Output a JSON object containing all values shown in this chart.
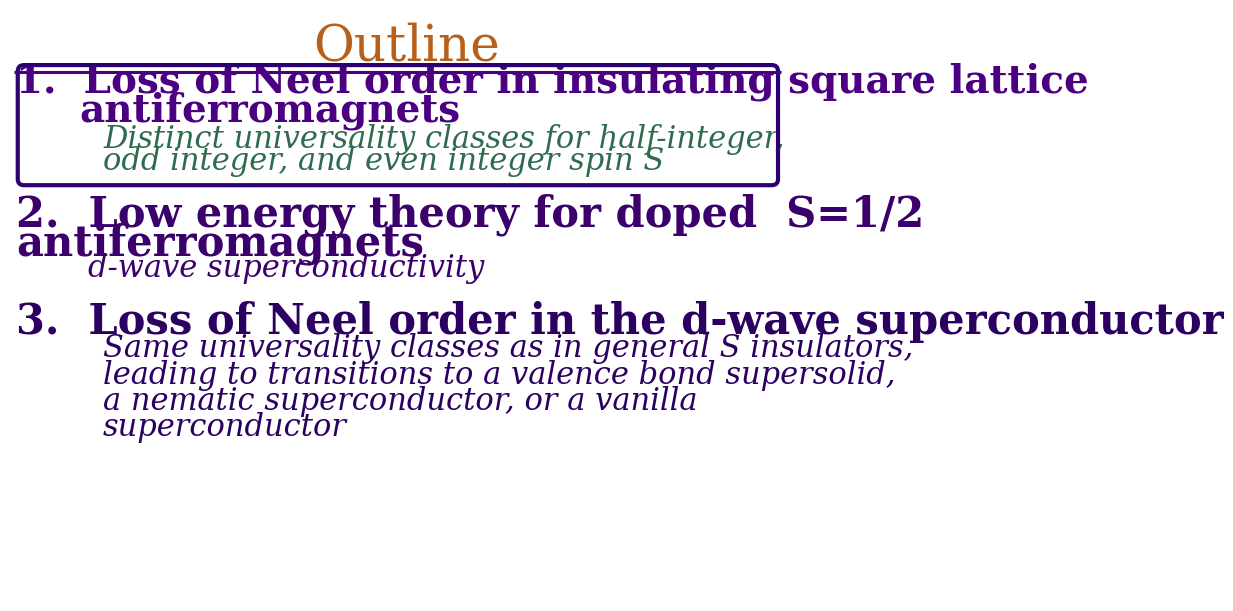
{
  "title": "Outline",
  "title_color": "#B8601A",
  "title_fontsize": 36,
  "background_color": "#ffffff",
  "item1_line1": "1.  Loss of Neel order in insulating square lattice",
  "item1_line2": "antiferromagnets",
  "item1_sub_line1": "Distinct universality classes for half-integer,",
  "item1_sub_line2": "odd integer, and even integer spin S",
  "item1_color": "#4B0082",
  "item1_fontsize": 28,
  "item1_sub_fontsize": 22,
  "box_color": "#2B0070",
  "item2_line1": "2.  Low energy theory for doped  S=1/2",
  "item2_line2": "antiferromagnets",
  "item2_sub": "d-wave superconductivity",
  "item2_color": "#3B006B",
  "item2_fontsize": 30,
  "item2_sub_fontsize": 22,
  "item3_line1": "3.  Loss of Neel order in the d-wave superconductor",
  "item3_sub_line1": "Same universality classes as in general S insulators,",
  "item3_sub_line2": "leading to transitions to a valence bond supersolid,",
  "item3_sub_line3": "a nematic superconductor, or a vanilla",
  "item3_sub_line4": "superconductor",
  "item3_color": "#2B0060",
  "item3_fontsize": 30,
  "item3_sub_fontsize": 22
}
